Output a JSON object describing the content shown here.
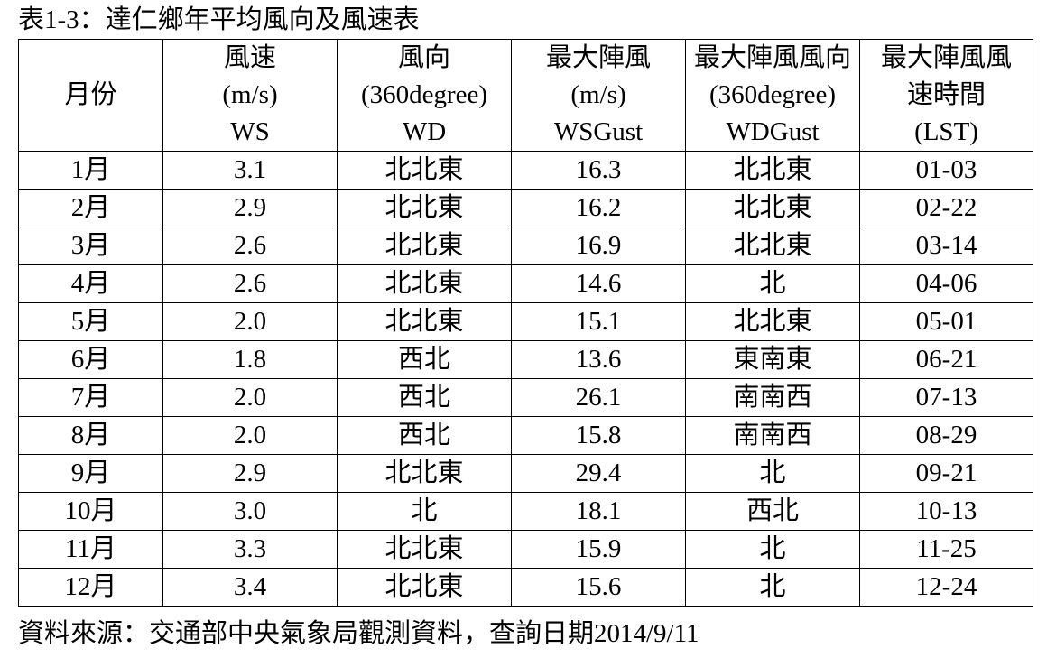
{
  "title": "表1-3：達仁鄉年平均風向及風速表",
  "headers": [
    {
      "lines": [
        "月份"
      ]
    },
    {
      "lines": [
        "風速",
        "(m/s)",
        "WS"
      ]
    },
    {
      "lines": [
        "風向",
        "(360degree)",
        "WD"
      ]
    },
    {
      "lines": [
        "最大陣風",
        "(m/s)",
        "WSGust"
      ]
    },
    {
      "lines": [
        "最大陣風風向",
        "(360degree)",
        "WDGust"
      ]
    },
    {
      "lines": [
        "最大陣風風",
        "速時間",
        "(LST)"
      ]
    }
  ],
  "rows": [
    [
      "1月",
      "3.1",
      "北北東",
      "16.3",
      "北北東",
      "01-03"
    ],
    [
      "2月",
      "2.9",
      "北北東",
      "16.2",
      "北北東",
      "02-22"
    ],
    [
      "3月",
      "2.6",
      "北北東",
      "16.9",
      "北北東",
      "03-14"
    ],
    [
      "4月",
      "2.6",
      "北北東",
      "14.6",
      "北",
      "04-06"
    ],
    [
      "5月",
      "2.0",
      "北北東",
      "15.1",
      "北北東",
      "05-01"
    ],
    [
      "6月",
      "1.8",
      "西北",
      "13.6",
      "東南東",
      "06-21"
    ],
    [
      "7月",
      "2.0",
      "西北",
      "26.1",
      "南南西",
      "07-13"
    ],
    [
      "8月",
      "2.0",
      "西北",
      "15.8",
      "南南西",
      "08-29"
    ],
    [
      "9月",
      "2.9",
      "北北東",
      "29.4",
      "北",
      "09-21"
    ],
    [
      "10月",
      "3.0",
      "北",
      "18.1",
      "西北",
      "10-13"
    ],
    [
      "11月",
      "3.3",
      "北北東",
      "15.9",
      "北",
      "11-25"
    ],
    [
      "12月",
      "3.4",
      "北北東",
      "15.6",
      "北",
      "12-24"
    ]
  ],
  "source": "資料來源：交通部中央氣象局觀測資料，查詢日期2014/9/11"
}
